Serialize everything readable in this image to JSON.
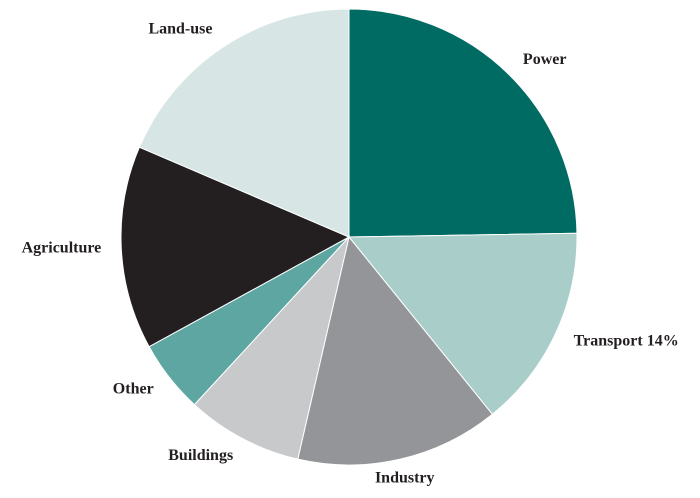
{
  "chart_data": {
    "type": "pie",
    "categories": [
      "Power",
      "Transport 14%",
      "Industry",
      "Buildings",
      "Other",
      "Agriculture",
      "Land-use"
    ],
    "values": [
      24,
      14,
      14,
      8,
      5,
      14,
      18
    ],
    "colors": [
      "#006b63",
      "#a9cdc9",
      "#939598",
      "#c8c9cb",
      "#5ea6a2",
      "#231f20",
      "#d7e6e5"
    ]
  }
}
